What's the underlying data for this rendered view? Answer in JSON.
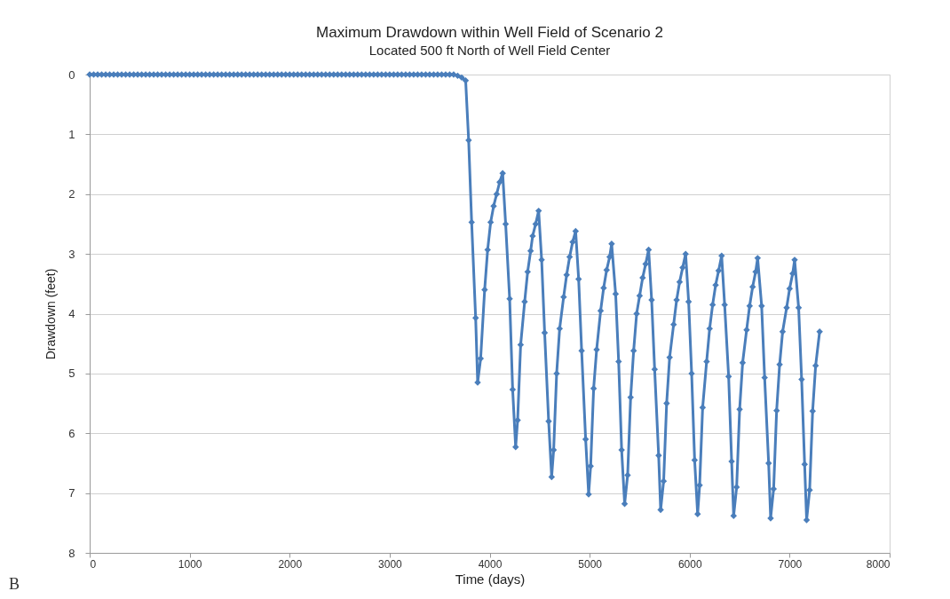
{
  "chart_data": {
    "type": "line",
    "title": "Maximum Drawdown within Well Field of Scenario 2",
    "subtitle": "Located 500 ft North of Well Field Center",
    "xlabel": "Time (days)",
    "ylabel": "Drawdown (feet)",
    "annotations": [
      "B"
    ],
    "xlim": [
      0,
      8000
    ],
    "xticks": [
      0,
      1000,
      2000,
      3000,
      4000,
      5000,
      6000,
      7000,
      8000
    ],
    "ylim": [
      8,
      0
    ],
    "yticks": [
      0,
      1,
      2,
      3,
      4,
      5,
      6,
      7,
      8
    ],
    "grid": "y",
    "marker": "diamond",
    "line_style": "solid",
    "series": [
      {
        "color": "#4a7ebb",
        "x": [
          0,
          40,
          80,
          120,
          160,
          200,
          240,
          280,
          320,
          360,
          400,
          440,
          480,
          520,
          560,
          600,
          640,
          680,
          720,
          760,
          800,
          840,
          880,
          920,
          960,
          1000,
          1040,
          1080,
          1120,
          1160,
          1200,
          1240,
          1280,
          1320,
          1360,
          1400,
          1440,
          1480,
          1520,
          1560,
          1600,
          1640,
          1680,
          1720,
          1760,
          1800,
          1840,
          1880,
          1920,
          1960,
          2000,
          2040,
          2080,
          2120,
          2160,
          2200,
          2240,
          2280,
          2320,
          2360,
          2400,
          2440,
          2480,
          2520,
          2560,
          2600,
          2640,
          2680,
          2720,
          2760,
          2800,
          2840,
          2880,
          2920,
          2960,
          3000,
          3040,
          3080,
          3120,
          3160,
          3200,
          3240,
          3280,
          3320,
          3360,
          3400,
          3440,
          3480,
          3520,
          3560,
          3600,
          3640,
          3680,
          3720,
          3760,
          3790,
          3820,
          3860,
          3880,
          3910,
          3950,
          3980,
          4010,
          4040,
          4070,
          4100,
          4130,
          4160,
          4200,
          4230,
          4260,
          4280,
          4310,
          4350,
          4380,
          4410,
          4430,
          4460,
          4490,
          4520,
          4550,
          4590,
          4620,
          4640,
          4670,
          4700,
          4740,
          4770,
          4800,
          4830,
          4860,
          4890,
          4920,
          4960,
          4990,
          5010,
          5040,
          5070,
          5110,
          5140,
          5170,
          5200,
          5220,
          5260,
          5290,
          5320,
          5350,
          5380,
          5410,
          5440,
          5470,
          5500,
          5530,
          5560,
          5590,
          5620,
          5650,
          5690,
          5710,
          5740,
          5770,
          5800,
          5840,
          5870,
          5900,
          5930,
          5960,
          5990,
          6020,
          6050,
          6080,
          6100,
          6130,
          6170,
          6200,
          6230,
          6260,
          6290,
          6320,
          6350,
          6390,
          6420,
          6440,
          6470,
          6500,
          6530,
          6570,
          6600,
          6630,
          6660,
          6680,
          6720,
          6750,
          6790,
          6810,
          6840,
          6870,
          6900,
          6930,
          6970,
          7000,
          7030,
          7050,
          7090,
          7120,
          7150,
          7170,
          7200,
          7230,
          7260,
          7300
        ],
        "values": [
          0,
          0,
          0,
          0,
          0,
          0,
          0,
          0,
          0,
          0,
          0,
          0,
          0,
          0,
          0,
          0,
          0,
          0,
          0,
          0,
          0,
          0,
          0,
          0,
          0,
          0,
          0,
          0,
          0,
          0,
          0,
          0,
          0,
          0,
          0,
          0,
          0,
          0,
          0,
          0,
          0,
          0,
          0,
          0,
          0,
          0,
          0,
          0,
          0,
          0,
          0,
          0,
          0,
          0,
          0,
          0,
          0,
          0,
          0,
          0,
          0,
          0,
          0,
          0,
          0,
          0,
          0,
          0,
          0,
          0,
          0,
          0,
          0,
          0,
          0,
          0,
          0,
          0,
          0,
          0,
          0,
          0,
          0,
          0,
          0,
          0,
          0,
          0,
          0,
          0,
          0,
          0,
          0.02,
          0.05,
          0.1,
          1.1,
          2.47,
          4.07,
          5.15,
          4.75,
          3.6,
          2.93,
          2.47,
          2.2,
          2.0,
          1.8,
          1.65,
          2.5,
          3.75,
          5.27,
          6.23,
          5.78,
          4.52,
          3.8,
          3.3,
          2.95,
          2.7,
          2.5,
          2.28,
          3.1,
          4.32,
          5.8,
          6.73,
          6.28,
          5.0,
          4.25,
          3.72,
          3.35,
          3.05,
          2.8,
          2.62,
          3.42,
          4.62,
          6.1,
          7.02,
          6.55,
          5.25,
          4.6,
          3.95,
          3.57,
          3.27,
          3.05,
          2.83,
          3.67,
          4.8,
          6.28,
          7.18,
          6.7,
          5.4,
          4.62,
          4.0,
          3.7,
          3.4,
          3.17,
          2.93,
          3.77,
          4.93,
          6.37,
          7.28,
          6.8,
          5.5,
          4.73,
          4.18,
          3.77,
          3.47,
          3.23,
          3.0,
          3.8,
          5.0,
          6.45,
          7.35,
          6.87,
          5.57,
          4.8,
          4.25,
          3.85,
          3.52,
          3.28,
          3.03,
          3.85,
          5.05,
          6.47,
          7.38,
          6.9,
          5.6,
          4.82,
          4.27,
          3.87,
          3.55,
          3.3,
          3.07,
          3.87,
          5.07,
          6.5,
          7.42,
          6.93,
          5.62,
          4.85,
          4.3,
          3.9,
          3.58,
          3.33,
          3.1,
          3.9,
          5.1,
          6.52,
          7.45,
          6.95,
          5.63,
          4.87,
          4.3
        ]
      }
    ]
  }
}
